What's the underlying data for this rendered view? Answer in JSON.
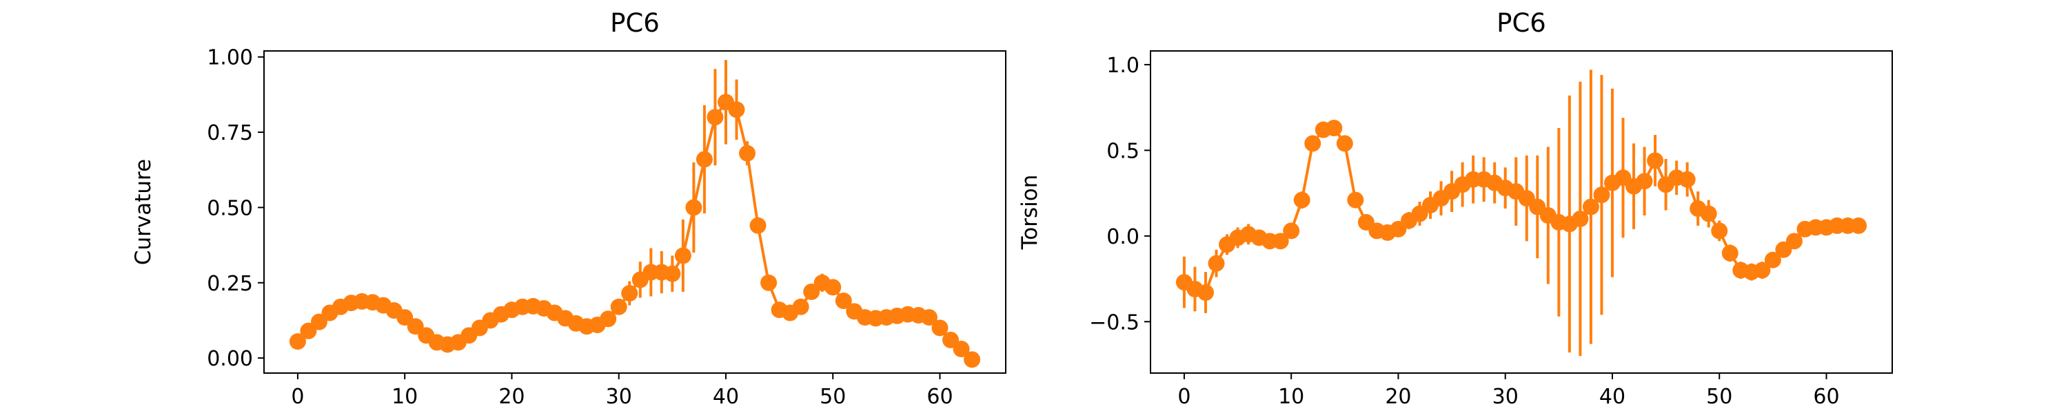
{
  "colors": {
    "series": "#ff7f0e",
    "axis": "#000000",
    "background": "#ffffff"
  },
  "chart_data": [
    {
      "type": "line",
      "title": "PC6",
      "xlabel": "",
      "ylabel": "Curvature",
      "xlim": [
        -3.15,
        66.15
      ],
      "ylim": [
        -0.05,
        1.02
      ],
      "xticks": [
        0,
        10,
        20,
        30,
        40,
        50,
        60
      ],
      "yticks": [
        0.0,
        0.25,
        0.5,
        0.75,
        1.0
      ],
      "ytick_labels": [
        "0.00",
        "0.25",
        "0.50",
        "0.75",
        "1.00"
      ],
      "xtick_labels": [
        "0",
        "10",
        "20",
        "30",
        "40",
        "50",
        "60"
      ],
      "grid": false,
      "markers": true,
      "errorbars": true,
      "series": [
        {
          "x": [
            0,
            1,
            2,
            3,
            4,
            5,
            6,
            7,
            8,
            9,
            10,
            11,
            12,
            13,
            14,
            15,
            16,
            17,
            18,
            19,
            20,
            21,
            22,
            23,
            24,
            25,
            26,
            27,
            28,
            29,
            30,
            31,
            32,
            33,
            34,
            35,
            36,
            37,
            38,
            39,
            40,
            41,
            42,
            43,
            44,
            45,
            46,
            47,
            48,
            49,
            50,
            51,
            52,
            53,
            54,
            55,
            56,
            57,
            58,
            59,
            60,
            61,
            62,
            63
          ],
          "y": [
            0.055,
            0.09,
            0.12,
            0.15,
            0.17,
            0.183,
            0.188,
            0.185,
            0.175,
            0.158,
            0.135,
            0.105,
            0.075,
            0.052,
            0.045,
            0.052,
            0.075,
            0.1,
            0.125,
            0.145,
            0.16,
            0.17,
            0.172,
            0.165,
            0.15,
            0.132,
            0.115,
            0.105,
            0.11,
            0.13,
            0.17,
            0.215,
            0.26,
            0.285,
            0.285,
            0.28,
            0.34,
            0.5,
            0.66,
            0.8,
            0.85,
            0.825,
            0.68,
            0.44,
            0.25,
            0.16,
            0.15,
            0.17,
            0.22,
            0.25,
            0.235,
            0.19,
            0.155,
            0.135,
            0.132,
            0.135,
            0.14,
            0.145,
            0.142,
            0.135,
            0.1,
            0.06,
            0.03,
            -0.005
          ],
          "err": [
            0.01,
            0.01,
            0.01,
            0.01,
            0.01,
            0.01,
            0.01,
            0.01,
            0.01,
            0.01,
            0.01,
            0.01,
            0.01,
            0.01,
            0.01,
            0.01,
            0.01,
            0.01,
            0.01,
            0.01,
            0.01,
            0.01,
            0.01,
            0.01,
            0.01,
            0.01,
            0.01,
            0.01,
            0.01,
            0.01,
            0.02,
            0.04,
            0.06,
            0.08,
            0.07,
            0.06,
            0.12,
            0.15,
            0.18,
            0.16,
            0.14,
            0.1,
            0.04,
            0.02,
            0.02,
            0.01,
            0.01,
            0.01,
            0.02,
            0.03,
            0.02,
            0.01,
            0.01,
            0.01,
            0.01,
            0.01,
            0.01,
            0.01,
            0.01,
            0.01,
            0.01,
            0.01,
            0.01,
            0.01
          ]
        }
      ]
    },
    {
      "type": "line",
      "title": "PC6",
      "xlabel": "",
      "ylabel": "Torsion",
      "xlim": [
        -3.15,
        66.15
      ],
      "ylim": [
        -0.8,
        1.08
      ],
      "xticks": [
        0,
        10,
        20,
        30,
        40,
        50,
        60
      ],
      "yticks": [
        -0.5,
        0.0,
        0.5,
        1.0
      ],
      "ytick_labels": [
        "−0.5",
        "0.0",
        "0.5",
        "1.0"
      ],
      "xtick_labels": [
        "0",
        "10",
        "20",
        "30",
        "40",
        "50",
        "60"
      ],
      "grid": false,
      "markers": true,
      "errorbars": true,
      "series": [
        {
          "x": [
            0,
            1,
            2,
            3,
            4,
            5,
            6,
            7,
            8,
            9,
            10,
            11,
            12,
            13,
            14,
            15,
            16,
            17,
            18,
            19,
            20,
            21,
            22,
            23,
            24,
            25,
            26,
            27,
            28,
            29,
            30,
            31,
            32,
            33,
            34,
            35,
            36,
            37,
            38,
            39,
            40,
            41,
            42,
            43,
            44,
            45,
            46,
            47,
            48,
            49,
            50,
            51,
            52,
            53,
            54,
            55,
            56,
            57,
            58,
            59,
            60,
            61,
            62,
            63
          ],
          "y": [
            -0.27,
            -0.31,
            -0.33,
            -0.16,
            -0.05,
            -0.01,
            0.01,
            -0.01,
            -0.03,
            -0.03,
            0.03,
            0.21,
            0.54,
            0.62,
            0.63,
            0.54,
            0.21,
            0.08,
            0.03,
            0.02,
            0.04,
            0.09,
            0.13,
            0.18,
            0.22,
            0.26,
            0.3,
            0.33,
            0.33,
            0.31,
            0.28,
            0.26,
            0.22,
            0.17,
            0.12,
            0.08,
            0.07,
            0.1,
            0.17,
            0.24,
            0.31,
            0.34,
            0.29,
            0.32,
            0.44,
            0.3,
            0.34,
            0.33,
            0.16,
            0.13,
            0.03,
            -0.1,
            -0.2,
            -0.21,
            -0.2,
            -0.14,
            -0.08,
            -0.03,
            0.04,
            0.05,
            0.05,
            0.06,
            0.06,
            0.06
          ],
          "err": [
            0.15,
            0.13,
            0.12,
            0.08,
            0.06,
            0.06,
            0.06,
            0.04,
            0.03,
            0.03,
            0.04,
            0.05,
            0.03,
            0.03,
            0.03,
            0.04,
            0.04,
            0.03,
            0.03,
            0.03,
            0.04,
            0.05,
            0.07,
            0.08,
            0.1,
            0.12,
            0.13,
            0.14,
            0.13,
            0.12,
            0.12,
            0.2,
            0.25,
            0.3,
            0.4,
            0.55,
            0.75,
            0.8,
            0.8,
            0.7,
            0.55,
            0.35,
            0.25,
            0.2,
            0.15,
            0.15,
            0.1,
            0.1,
            0.1,
            0.08,
            0.06,
            0.05,
            0.05,
            0.05,
            0.05,
            0.03,
            0.02,
            0.02,
            0.02,
            0.02,
            0.02,
            0.02,
            0.02,
            0.02
          ]
        }
      ]
    }
  ]
}
